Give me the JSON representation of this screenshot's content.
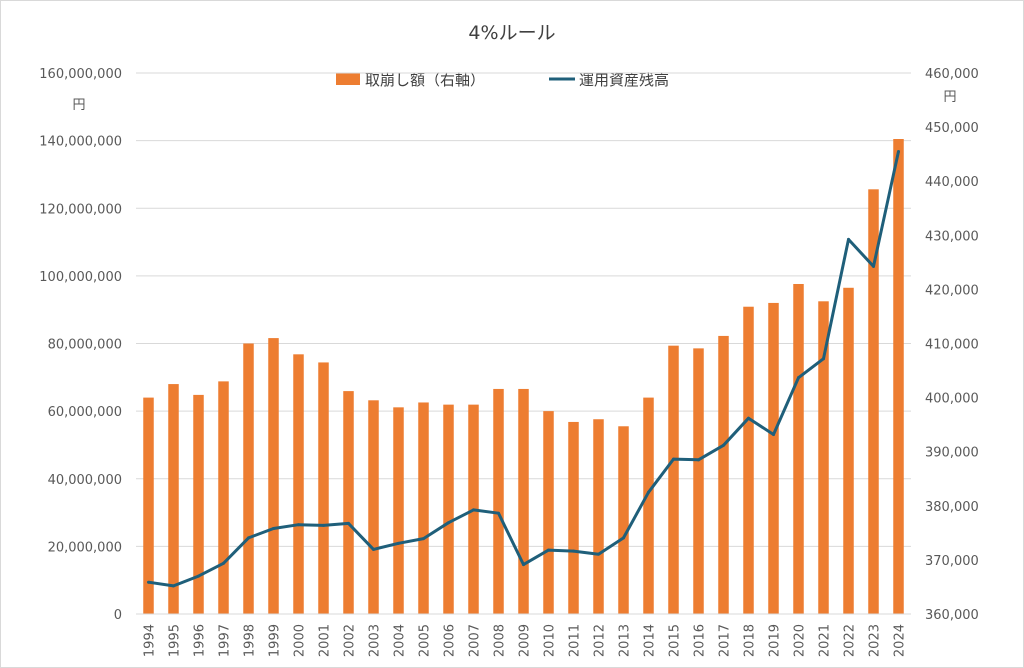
{
  "chart_data": {
    "type": "bar+line",
    "title": "4%ルール",
    "left_axis": {
      "unit": "円",
      "ylim": [
        0,
        160000000
      ],
      "tick_values": [
        0,
        20000000,
        40000000,
        60000000,
        80000000,
        100000000,
        120000000,
        140000000,
        160000000
      ],
      "tick_labels": [
        "0",
        "20,000,000",
        "40,000,000",
        "60,000,000",
        "80,000,000",
        "100,000,000",
        "120,000,000",
        "140,000,000",
        "160,000,000"
      ]
    },
    "right_axis": {
      "unit": "円",
      "ylim": [
        360000,
        460000
      ],
      "tick_values": [
        360000,
        370000,
        380000,
        390000,
        400000,
        410000,
        420000,
        430000,
        440000,
        450000,
        460000
      ],
      "tick_labels": [
        "360,000",
        "370,000",
        "380,000",
        "390,000",
        "400,000",
        "410,000",
        "420,000",
        "430,000",
        "440,000",
        "450,000",
        "460,000"
      ]
    },
    "categories": [
      "1994",
      "1995",
      "1996",
      "1997",
      "1998",
      "1999",
      "2000",
      "2001",
      "2002",
      "2003",
      "2004",
      "2005",
      "2006",
      "2007",
      "2008",
      "2009",
      "2010",
      "2011",
      "2012",
      "2013",
      "2014",
      "2015",
      "2016",
      "2017",
      "2018",
      "2019",
      "2020",
      "2021",
      "2022",
      "2023",
      "2024"
    ],
    "series": [
      {
        "name": "取崩し額（右軸）",
        "type": "bar",
        "axis": "right",
        "color": "#ED7D31",
        "values": [
          400000,
          402500,
          400500,
          403000,
          410000,
          411000,
          408000,
          406500,
          401200,
          399500,
          398200,
          399100,
          398700,
          398700,
          401600,
          401600,
          397500,
          395500,
          396000,
          394700,
          400000,
          409600,
          409100,
          411400,
          416800,
          417500,
          421000,
          417800,
          420300,
          438500,
          447800
        ]
      },
      {
        "name": "運用資産残高",
        "type": "line",
        "axis": "left",
        "color": "#1F5F7A",
        "values": [
          9400000,
          8300000,
          11200000,
          15000000,
          22500000,
          25300000,
          26400000,
          26200000,
          26800000,
          19100000,
          20900000,
          22300000,
          27000000,
          30800000,
          29800000,
          14600000,
          18900000,
          18600000,
          17700000,
          22500000,
          36000000,
          45800000,
          45600000,
          49900000,
          57900000,
          53100000,
          69900000,
          75500000,
          110800000,
          102800000,
          136800000
        ]
      }
    ],
    "legend": "top-center"
  }
}
